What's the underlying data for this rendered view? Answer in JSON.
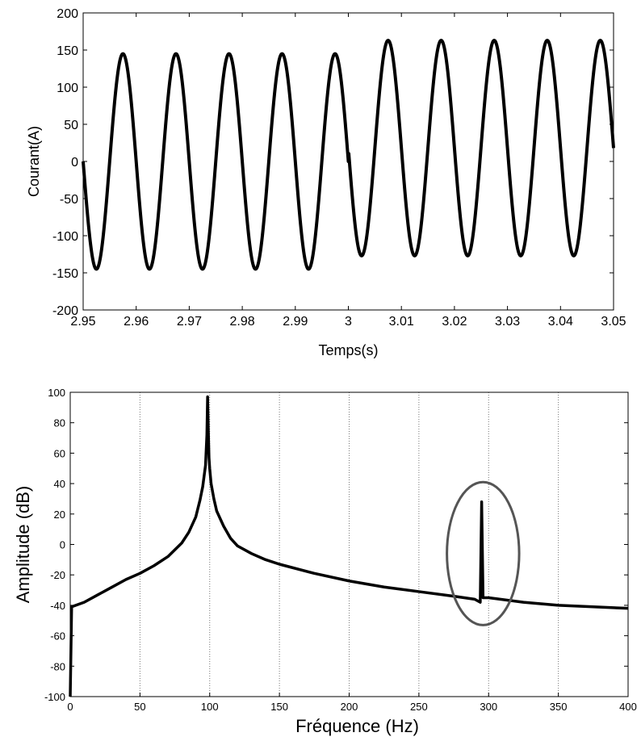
{
  "chart_data": [
    {
      "type": "line",
      "xlabel": "Temps(s)",
      "ylabel": "Courant(A)",
      "xlim": [
        2.95,
        3.05
      ],
      "ylim": [
        -200,
        200
      ],
      "xticks": [
        2.95,
        2.96,
        2.97,
        2.98,
        2.99,
        3,
        3.01,
        3.02,
        3.03,
        3.04,
        3.05
      ],
      "xtick_labels": [
        "2.95",
        "2.96",
        "2.97",
        "2.98",
        "2.99",
        "3",
        "3.01",
        "3.02",
        "3.03",
        "3.04",
        "3.05"
      ],
      "yticks": [
        200,
        150,
        100,
        50,
        0,
        -50,
        -100,
        -150,
        -200
      ],
      "grid": false,
      "frequency_hz": 100,
      "series": [
        {
          "color": "#000000",
          "segments": [
            {
              "t_start": 2.95,
              "t_end": 3.0,
              "amplitude": 145,
              "offset": 0
            },
            {
              "t_start": 3.0,
              "t_end": 3.05,
              "amplitude": 145,
              "offset": 18
            }
          ],
          "peaks_before_3s": 145,
          "troughs_before_3s": -145,
          "peaks_after_3s": 163,
          "troughs_after_3s": -127
        }
      ]
    },
    {
      "type": "line",
      "xlabel": "Fréquence (Hz)",
      "ylabel": "Amplitude (dB)",
      "xlim": [
        0,
        400
      ],
      "ylim": [
        -100,
        100
      ],
      "xticks": [
        0,
        50,
        100,
        150,
        200,
        250,
        300,
        350,
        400
      ],
      "yticks": [
        100,
        80,
        60,
        40,
        20,
        0,
        -20,
        -40,
        -60,
        -80,
        -100
      ],
      "grid": true,
      "grid_axis": "x",
      "series": [
        {
          "color": "#000000",
          "x": [
            0,
            1,
            10,
            20,
            30,
            40,
            50,
            60,
            70,
            80,
            85,
            90,
            93,
            95,
            97,
            98,
            98.5,
            99,
            99.5,
            100,
            101,
            103,
            105,
            110,
            115,
            120,
            130,
            140,
            150,
            175,
            200,
            225,
            250,
            275,
            290,
            294,
            295,
            296,
            297,
            300,
            325,
            350,
            375,
            400
          ],
          "y": [
            -100,
            -41,
            -38,
            -33,
            -28,
            -23,
            -19,
            -14,
            -8,
            1,
            8,
            18,
            29,
            38,
            52,
            72,
            97,
            75,
            57,
            50,
            40,
            30,
            22,
            12,
            4,
            -1,
            -6,
            -10,
            -13,
            -19,
            -24,
            -28,
            -31,
            -34,
            -36,
            -38,
            28,
            -35,
            -35,
            -35,
            -38,
            -40,
            -41,
            -42
          ]
        }
      ],
      "annotations": [
        {
          "shape": "ellipse",
          "center": [
            296,
            -6
          ],
          "rx_hz": 14,
          "ry_db": 47,
          "color": "#555555"
        }
      ]
    }
  ]
}
